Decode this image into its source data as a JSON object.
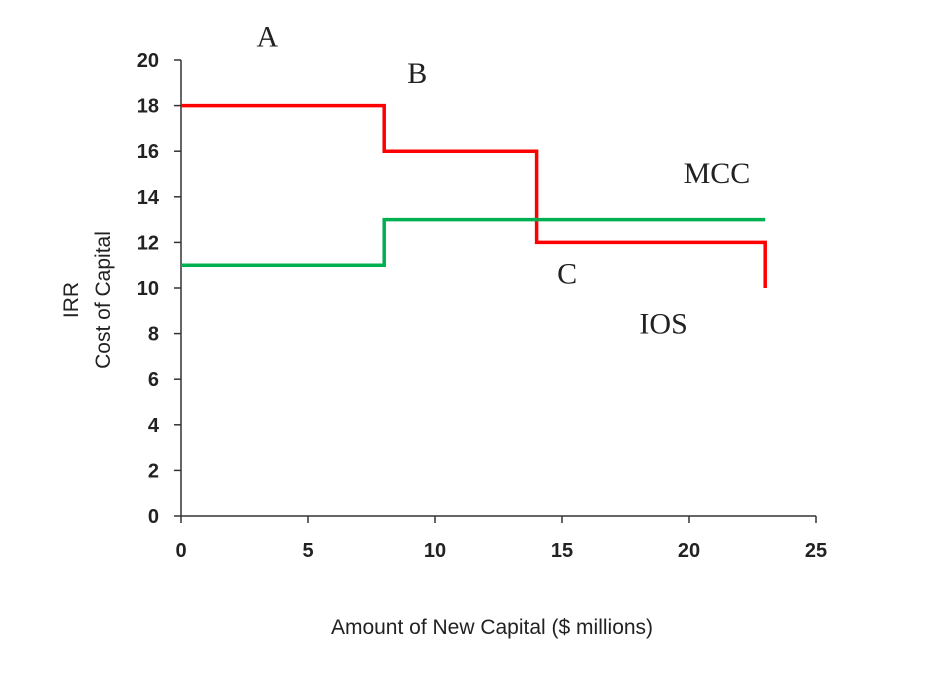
{
  "chart_data": {
    "type": "line",
    "xlabel": "Amount of New Capital ($ millions)",
    "ylabel_lines": [
      "IRR",
      "Cost of Capital"
    ],
    "xlim": [
      0,
      25
    ],
    "ylim": [
      0,
      20
    ],
    "x_ticks": [
      0,
      5,
      10,
      15,
      20,
      25
    ],
    "y_ticks": [
      0,
      2,
      4,
      6,
      8,
      10,
      12,
      14,
      16,
      18,
      20
    ],
    "grid": false,
    "step_series": [
      {
        "name": "IOS",
        "color": "#ff0000",
        "points": [
          [
            0,
            18
          ],
          [
            8,
            18
          ],
          [
            8,
            16
          ],
          [
            14,
            16
          ],
          [
            14,
            12
          ],
          [
            23,
            12
          ],
          [
            23,
            10
          ]
        ]
      },
      {
        "name": "MCC",
        "color": "#00b050",
        "points": [
          [
            0,
            11
          ],
          [
            8,
            11
          ],
          [
            8,
            13
          ],
          [
            23,
            13
          ]
        ]
      }
    ],
    "annotations": [
      {
        "text": "A",
        "x": 3.4,
        "y": 20.6
      },
      {
        "text": "B",
        "x": 9.3,
        "y": 19.0
      },
      {
        "text": "MCC",
        "x": 21.1,
        "y": 14.6
      },
      {
        "text": "C",
        "x": 15.2,
        "y": 10.2
      },
      {
        "text": "IOS",
        "x": 19.0,
        "y": 8.0
      }
    ]
  }
}
